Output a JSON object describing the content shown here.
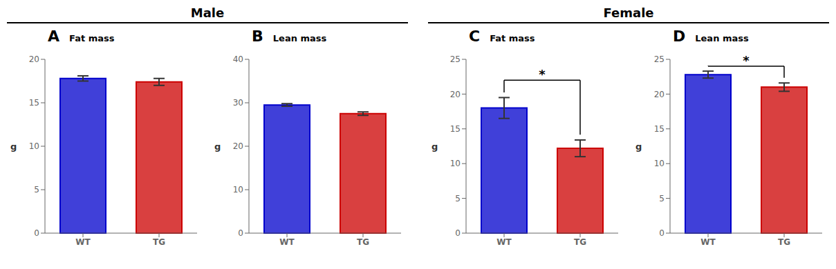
{
  "chart_data": [
    {
      "type": "bar",
      "group_title": "Male",
      "panel_label": "A",
      "title": "Fat mass",
      "y_label": "g",
      "categories": [
        "WT",
        "TG"
      ],
      "values": [
        17.8,
        17.4
      ],
      "errors": [
        0.3,
        0.4
      ],
      "colors": [
        "#0000cc",
        "#cc0000"
      ],
      "ylim": [
        0,
        20
      ],
      "yticks": [
        0,
        5,
        10,
        15,
        20
      ],
      "grid": false
    },
    {
      "type": "bar",
      "group_title": "Male",
      "panel_label": "B",
      "title": "Lean mass",
      "y_label": "g",
      "categories": [
        "WT",
        "TG"
      ],
      "values": [
        29.5,
        27.5
      ],
      "errors": [
        0.3,
        0.4
      ],
      "colors": [
        "#0000cc",
        "#cc0000"
      ],
      "ylim": [
        0,
        40
      ],
      "yticks": [
        0,
        10,
        20,
        30,
        40
      ],
      "grid": false
    },
    {
      "type": "bar",
      "group_title": "Female",
      "panel_label": "C",
      "title": "Fat mass",
      "y_label": "g",
      "categories": [
        "WT",
        "TG"
      ],
      "values": [
        18.0,
        12.2
      ],
      "errors": [
        1.5,
        1.2
      ],
      "colors": [
        "#0000cc",
        "#cc0000"
      ],
      "ylim": [
        0,
        25
      ],
      "yticks": [
        0,
        5,
        10,
        15,
        20,
        25
      ],
      "grid": false,
      "annotations": [
        {
          "text": "*",
          "y": 22.0
        }
      ]
    },
    {
      "type": "bar",
      "group_title": "Female",
      "panel_label": "D",
      "title": "Lean mass",
      "y_label": "g",
      "categories": [
        "WT",
        "TG"
      ],
      "values": [
        22.8,
        21.0
      ],
      "errors": [
        0.5,
        0.6
      ],
      "colors": [
        "#0000cc",
        "#cc0000"
      ],
      "ylim": [
        0,
        25
      ],
      "yticks": [
        0,
        5,
        10,
        15,
        20,
        25
      ],
      "grid": false,
      "annotations": [
        {
          "text": "*",
          "y": 24.0
        }
      ]
    }
  ]
}
